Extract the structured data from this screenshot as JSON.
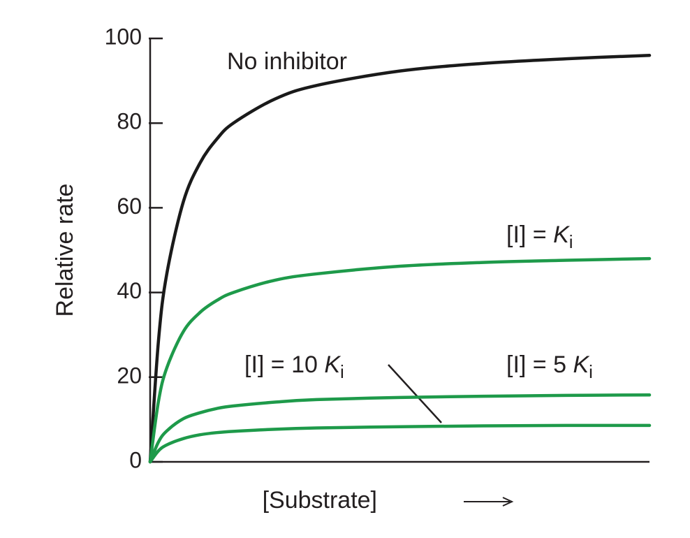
{
  "chart_data": {
    "type": "line",
    "y_label": "Relative rate",
    "x_label": "[Substrate]",
    "x": [
      0,
      1,
      2,
      4,
      6,
      8,
      10,
      15,
      20,
      30,
      40,
      50,
      60
    ],
    "xlim": [
      0,
      60
    ],
    "ylim": [
      0,
      100
    ],
    "yticks": [
      0,
      20,
      40,
      60,
      80,
      100
    ],
    "series": [
      {
        "label": {
          "text": "No inhibitor"
        },
        "color": "#1a1a1a",
        "values": [
          0,
          28.6,
          44.4,
          61.5,
          70.6,
          76.2,
          80,
          85.7,
          88.9,
          92.3,
          94.1,
          95.2,
          96
        ]
      },
      {
        "label": {
          "text": "[I] = ",
          "symbol": "K",
          "subscript": "i"
        },
        "color": "#1e9a4a",
        "values": [
          0,
          14.3,
          22.2,
          30.8,
          35.3,
          38.1,
          40,
          42.9,
          44.4,
          46.2,
          47.1,
          47.6,
          48
        ]
      },
      {
        "label": {
          "text": "[I] = 5 ",
          "symbol": "K",
          "subscript": "i"
        },
        "color": "#1e9a4a",
        "values": [
          0,
          4.7,
          7.3,
          10.2,
          11.6,
          12.6,
          13.2,
          14.1,
          14.7,
          15.2,
          15.5,
          15.7,
          15.8
        ]
      },
      {
        "label": {
          "text": "[I] = 10 ",
          "symbol": "K",
          "subscript": "i"
        },
        "color": "#1e9a4a",
        "values": [
          0,
          2.6,
          4,
          5.5,
          6.4,
          6.9,
          7.2,
          7.7,
          8,
          8.3,
          8.5,
          8.6,
          8.6
        ]
      }
    ]
  }
}
